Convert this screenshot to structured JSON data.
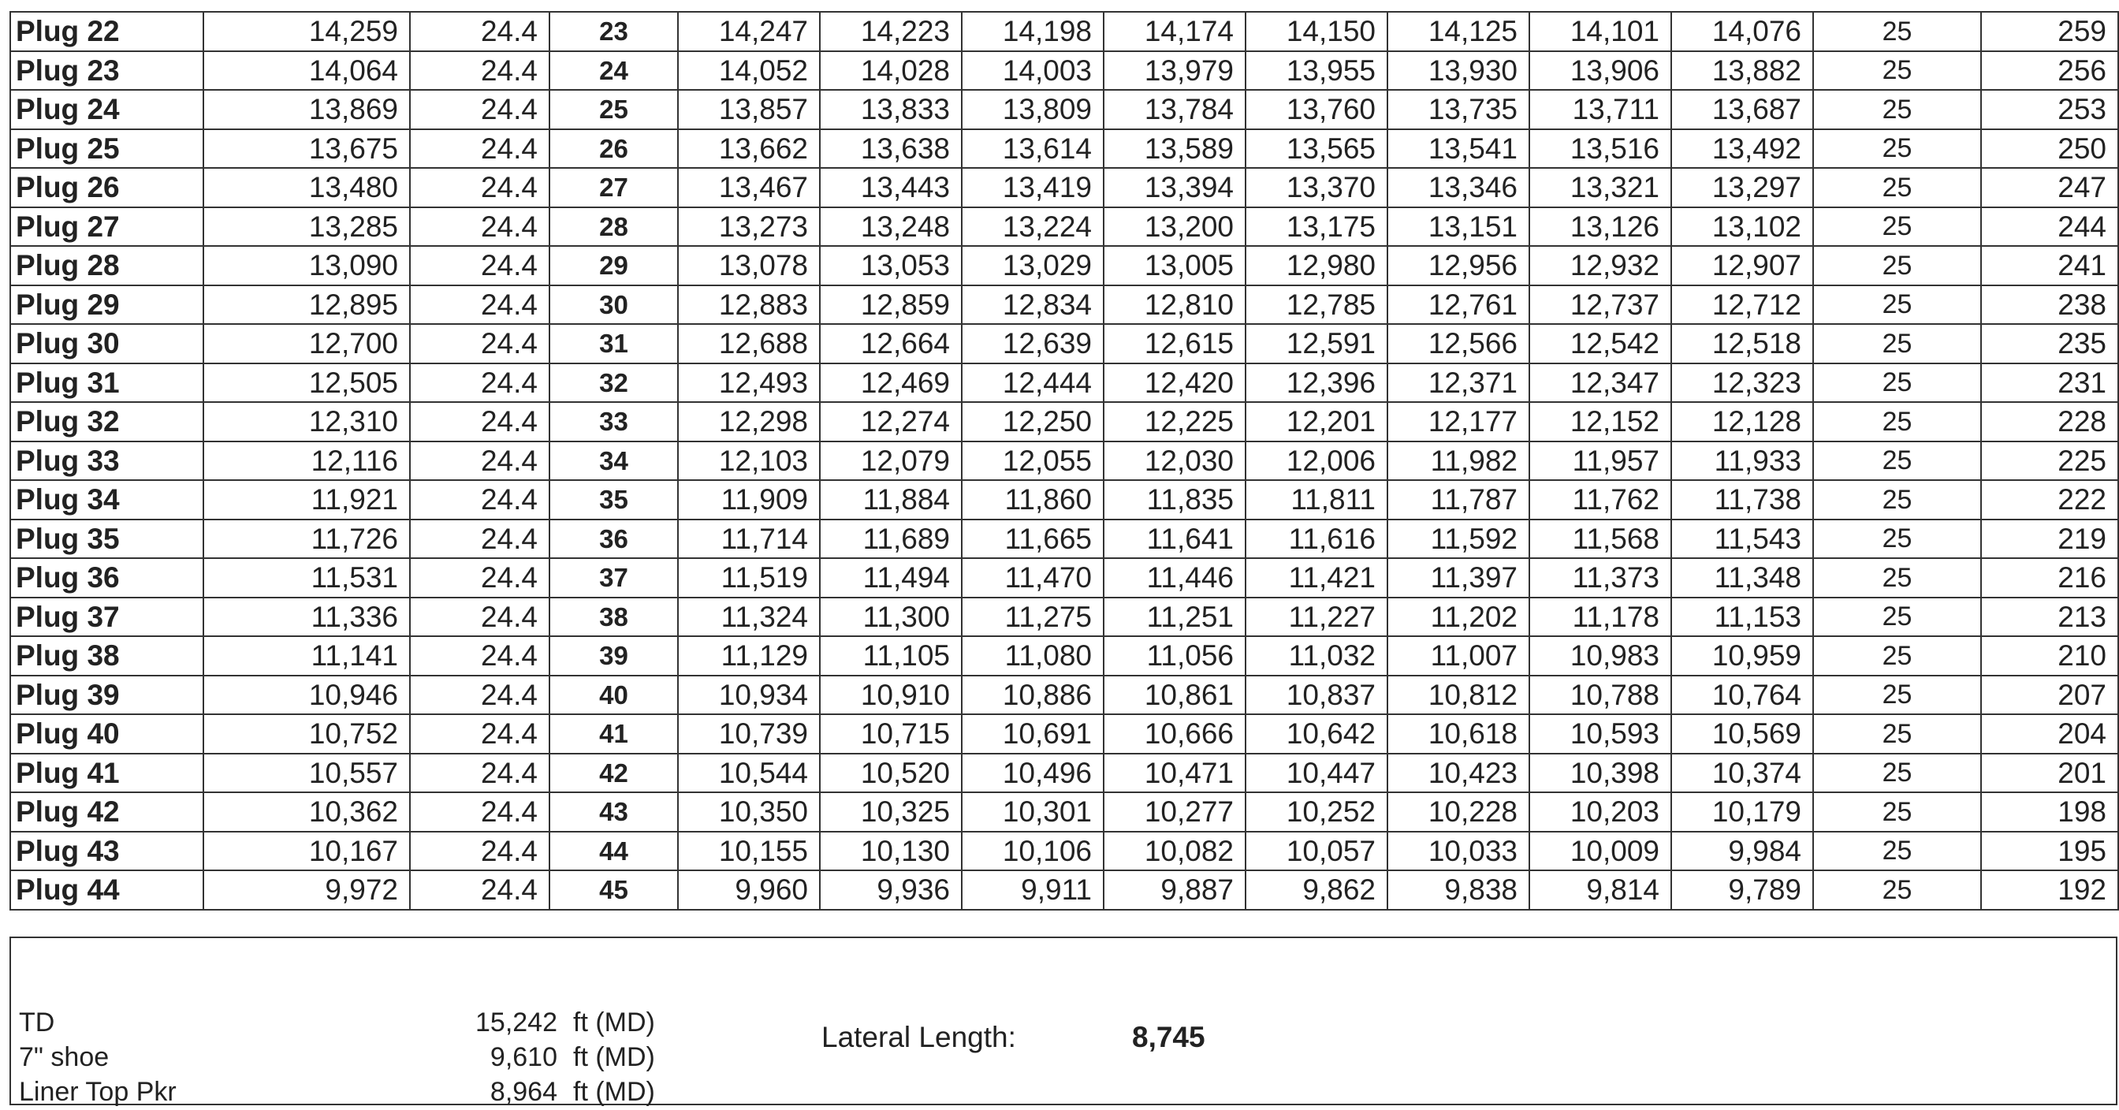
{
  "rows": [
    {
      "label": "Plug 22",
      "depth": "14,259",
      "width": "24.4",
      "stage": "23",
      "c1": "14,247",
      "c2": "14,223",
      "c3": "14,198",
      "c4": "14,174",
      "c5": "14,150",
      "c6": "14,125",
      "c7": "14,101",
      "c8": "14,076",
      "spacing": "25",
      "total": "259"
    },
    {
      "label": "Plug 23",
      "depth": "14,064",
      "width": "24.4",
      "stage": "24",
      "c1": "14,052",
      "c2": "14,028",
      "c3": "14,003",
      "c4": "13,979",
      "c5": "13,955",
      "c6": "13,930",
      "c7": "13,906",
      "c8": "13,882",
      "spacing": "25",
      "total": "256"
    },
    {
      "label": "Plug 24",
      "depth": "13,869",
      "width": "24.4",
      "stage": "25",
      "c1": "13,857",
      "c2": "13,833",
      "c3": "13,809",
      "c4": "13,784",
      "c5": "13,760",
      "c6": "13,735",
      "c7": "13,711",
      "c8": "13,687",
      "spacing": "25",
      "total": "253"
    },
    {
      "label": "Plug 25",
      "depth": "13,675",
      "width": "24.4",
      "stage": "26",
      "c1": "13,662",
      "c2": "13,638",
      "c3": "13,614",
      "c4": "13,589",
      "c5": "13,565",
      "c6": "13,541",
      "c7": "13,516",
      "c8": "13,492",
      "spacing": "25",
      "total": "250"
    },
    {
      "label": "Plug 26",
      "depth": "13,480",
      "width": "24.4",
      "stage": "27",
      "c1": "13,467",
      "c2": "13,443",
      "c3": "13,419",
      "c4": "13,394",
      "c5": "13,370",
      "c6": "13,346",
      "c7": "13,321",
      "c8": "13,297",
      "spacing": "25",
      "total": "247"
    },
    {
      "label": "Plug 27",
      "depth": "13,285",
      "width": "24.4",
      "stage": "28",
      "c1": "13,273",
      "c2": "13,248",
      "c3": "13,224",
      "c4": "13,200",
      "c5": "13,175",
      "c6": "13,151",
      "c7": "13,126",
      "c8": "13,102",
      "spacing": "25",
      "total": "244"
    },
    {
      "label": "Plug 28",
      "depth": "13,090",
      "width": "24.4",
      "stage": "29",
      "c1": "13,078",
      "c2": "13,053",
      "c3": "13,029",
      "c4": "13,005",
      "c5": "12,980",
      "c6": "12,956",
      "c7": "12,932",
      "c8": "12,907",
      "spacing": "25",
      "total": "241"
    },
    {
      "label": "Plug 29",
      "depth": "12,895",
      "width": "24.4",
      "stage": "30",
      "c1": "12,883",
      "c2": "12,859",
      "c3": "12,834",
      "c4": "12,810",
      "c5": "12,785",
      "c6": "12,761",
      "c7": "12,737",
      "c8": "12,712",
      "spacing": "25",
      "total": "238"
    },
    {
      "label": "Plug 30",
      "depth": "12,700",
      "width": "24.4",
      "stage": "31",
      "c1": "12,688",
      "c2": "12,664",
      "c3": "12,639",
      "c4": "12,615",
      "c5": "12,591",
      "c6": "12,566",
      "c7": "12,542",
      "c8": "12,518",
      "spacing": "25",
      "total": "235"
    },
    {
      "label": "Plug 31",
      "depth": "12,505",
      "width": "24.4",
      "stage": "32",
      "c1": "12,493",
      "c2": "12,469",
      "c3": "12,444",
      "c4": "12,420",
      "c5": "12,396",
      "c6": "12,371",
      "c7": "12,347",
      "c8": "12,323",
      "spacing": "25",
      "total": "231"
    },
    {
      "label": "Plug 32",
      "depth": "12,310",
      "width": "24.4",
      "stage": "33",
      "c1": "12,298",
      "c2": "12,274",
      "c3": "12,250",
      "c4": "12,225",
      "c5": "12,201",
      "c6": "12,177",
      "c7": "12,152",
      "c8": "12,128",
      "spacing": "25",
      "total": "228"
    },
    {
      "label": "Plug 33",
      "depth": "12,116",
      "width": "24.4",
      "stage": "34",
      "c1": "12,103",
      "c2": "12,079",
      "c3": "12,055",
      "c4": "12,030",
      "c5": "12,006",
      "c6": "11,982",
      "c7": "11,957",
      "c8": "11,933",
      "spacing": "25",
      "total": "225"
    },
    {
      "label": "Plug 34",
      "depth": "11,921",
      "width": "24.4",
      "stage": "35",
      "c1": "11,909",
      "c2": "11,884",
      "c3": "11,860",
      "c4": "11,835",
      "c5": "11,811",
      "c6": "11,787",
      "c7": "11,762",
      "c8": "11,738",
      "spacing": "25",
      "total": "222"
    },
    {
      "label": "Plug 35",
      "depth": "11,726",
      "width": "24.4",
      "stage": "36",
      "c1": "11,714",
      "c2": "11,689",
      "c3": "11,665",
      "c4": "11,641",
      "c5": "11,616",
      "c6": "11,592",
      "c7": "11,568",
      "c8": "11,543",
      "spacing": "25",
      "total": "219"
    },
    {
      "label": "Plug 36",
      "depth": "11,531",
      "width": "24.4",
      "stage": "37",
      "c1": "11,519",
      "c2": "11,494",
      "c3": "11,470",
      "c4": "11,446",
      "c5": "11,421",
      "c6": "11,397",
      "c7": "11,373",
      "c8": "11,348",
      "spacing": "25",
      "total": "216"
    },
    {
      "label": "Plug 37",
      "depth": "11,336",
      "width": "24.4",
      "stage": "38",
      "c1": "11,324",
      "c2": "11,300",
      "c3": "11,275",
      "c4": "11,251",
      "c5": "11,227",
      "c6": "11,202",
      "c7": "11,178",
      "c8": "11,153",
      "spacing": "25",
      "total": "213"
    },
    {
      "label": "Plug 38",
      "depth": "11,141",
      "width": "24.4",
      "stage": "39",
      "c1": "11,129",
      "c2": "11,105",
      "c3": "11,080",
      "c4": "11,056",
      "c5": "11,032",
      "c6": "11,007",
      "c7": "10,983",
      "c8": "10,959",
      "spacing": "25",
      "total": "210"
    },
    {
      "label": "Plug 39",
      "depth": "10,946",
      "width": "24.4",
      "stage": "40",
      "c1": "10,934",
      "c2": "10,910",
      "c3": "10,886",
      "c4": "10,861",
      "c5": "10,837",
      "c6": "10,812",
      "c7": "10,788",
      "c8": "10,764",
      "spacing": "25",
      "total": "207"
    },
    {
      "label": "Plug 40",
      "depth": "10,752",
      "width": "24.4",
      "stage": "41",
      "c1": "10,739",
      "c2": "10,715",
      "c3": "10,691",
      "c4": "10,666",
      "c5": "10,642",
      "c6": "10,618",
      "c7": "10,593",
      "c8": "10,569",
      "spacing": "25",
      "total": "204"
    },
    {
      "label": "Plug 41",
      "depth": "10,557",
      "width": "24.4",
      "stage": "42",
      "c1": "10,544",
      "c2": "10,520",
      "c3": "10,496",
      "c4": "10,471",
      "c5": "10,447",
      "c6": "10,423",
      "c7": "10,398",
      "c8": "10,374",
      "spacing": "25",
      "total": "201"
    },
    {
      "label": "Plug 42",
      "depth": "10,362",
      "width": "24.4",
      "stage": "43",
      "c1": "10,350",
      "c2": "10,325",
      "c3": "10,301",
      "c4": "10,277",
      "c5": "10,252",
      "c6": "10,228",
      "c7": "10,203",
      "c8": "10,179",
      "spacing": "25",
      "total": "198"
    },
    {
      "label": "Plug 43",
      "depth": "10,167",
      "width": "24.4",
      "stage": "44",
      "c1": "10,155",
      "c2": "10,130",
      "c3": "10,106",
      "c4": "10,082",
      "c5": "10,057",
      "c6": "10,033",
      "c7": "10,009",
      "c8": "9,984",
      "spacing": "25",
      "total": "195"
    },
    {
      "label": "Plug 44",
      "depth": "9,972",
      "width": "24.4",
      "stage": "45",
      "c1": "9,960",
      "c2": "9,936",
      "c3": "9,911",
      "c4": "9,887",
      "c5": "9,862",
      "c6": "9,838",
      "c7": "9,814",
      "c8": "9,789",
      "spacing": "25",
      "total": "192"
    }
  ],
  "summary": {
    "td": {
      "label": "TD",
      "value": "15,242",
      "unit": "ft (MD)"
    },
    "shoe": {
      "label": "7\" shoe",
      "value": "9,610",
      "unit": "ft (MD)"
    },
    "liner": {
      "label": "Liner Top Pkr",
      "value": "8,964",
      "unit": "ft (MD)"
    },
    "lateral_label": "Lateral Length:",
    "lateral_value": "8,745"
  }
}
